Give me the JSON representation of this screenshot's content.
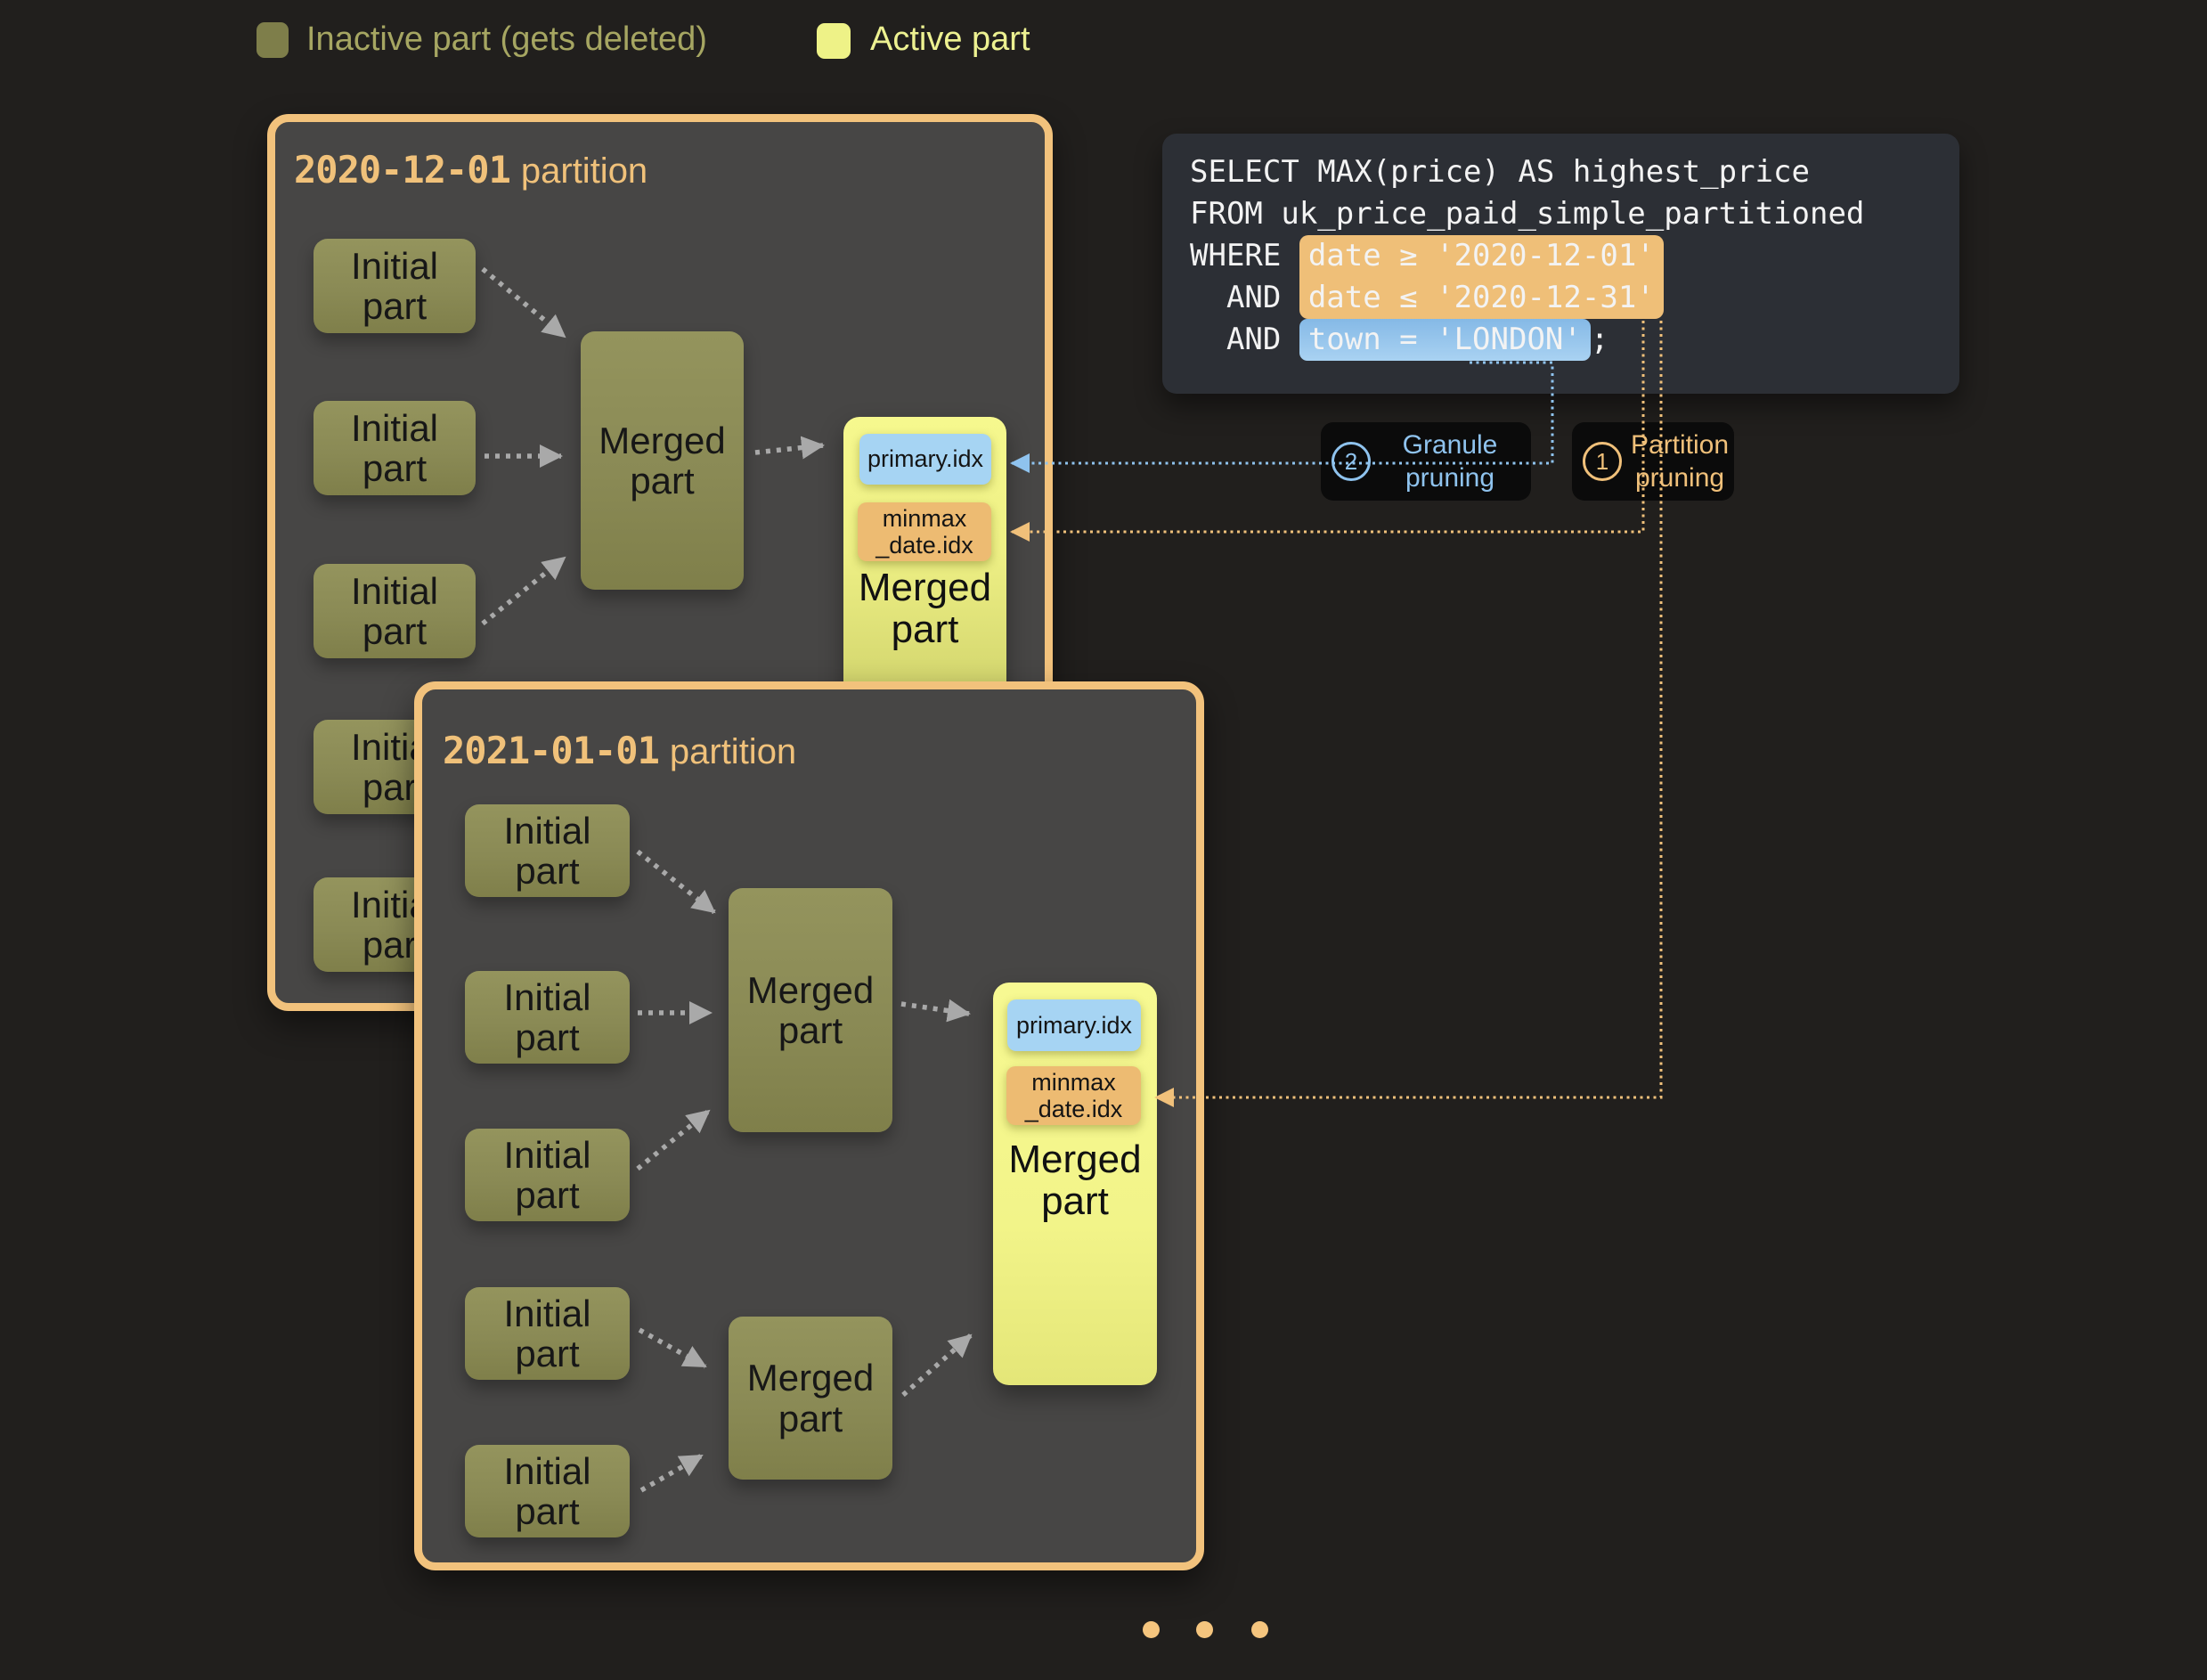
{
  "legend": {
    "inactive_label": "Inactive part (gets deleted)",
    "active_label": "Active part"
  },
  "labels": {
    "initial": "Initial part",
    "merged": "Merged part",
    "primary_idx": "primary.idx",
    "minmax_idx": "minmax\n_date.idx"
  },
  "partitions": [
    {
      "date": "2020-12-01",
      "suffix": "partition"
    },
    {
      "date": "2021-01-01",
      "suffix": "partition"
    }
  ],
  "sql": {
    "lines": [
      {
        "pre": "SELECT MAX(price) AS highest_price"
      },
      {
        "pre": "FROM uk_price_paid_simple_partitioned"
      },
      {
        "pre": "WHERE ",
        "hl": "date ≥ '2020-12-01'",
        "style": "orange-top"
      },
      {
        "pre": "  AND ",
        "hl": "date ≤ '2020-12-31'",
        "style": "orange-bottom"
      },
      {
        "pre": "  AND ",
        "hl": "town = 'LONDON'",
        "style": "blue",
        "post": ";"
      }
    ]
  },
  "badges": [
    {
      "num": "2",
      "label": "Granule\npruning",
      "color": "blue"
    },
    {
      "num": "1",
      "label": "Partition\npruning",
      "color": "orange"
    }
  ],
  "pager": {
    "dot_count": 3
  },
  "colors": {
    "accent_orange": "#f2c27c",
    "accent_blue": "#8fc3ee",
    "active_yellow": "#f6f88d",
    "inactive_olive": "#8a8a55",
    "highlight_orange": "#efbf78",
    "highlight_blue": "#95c3ea",
    "panel_gray": "#474645",
    "background": "#211f1d"
  }
}
